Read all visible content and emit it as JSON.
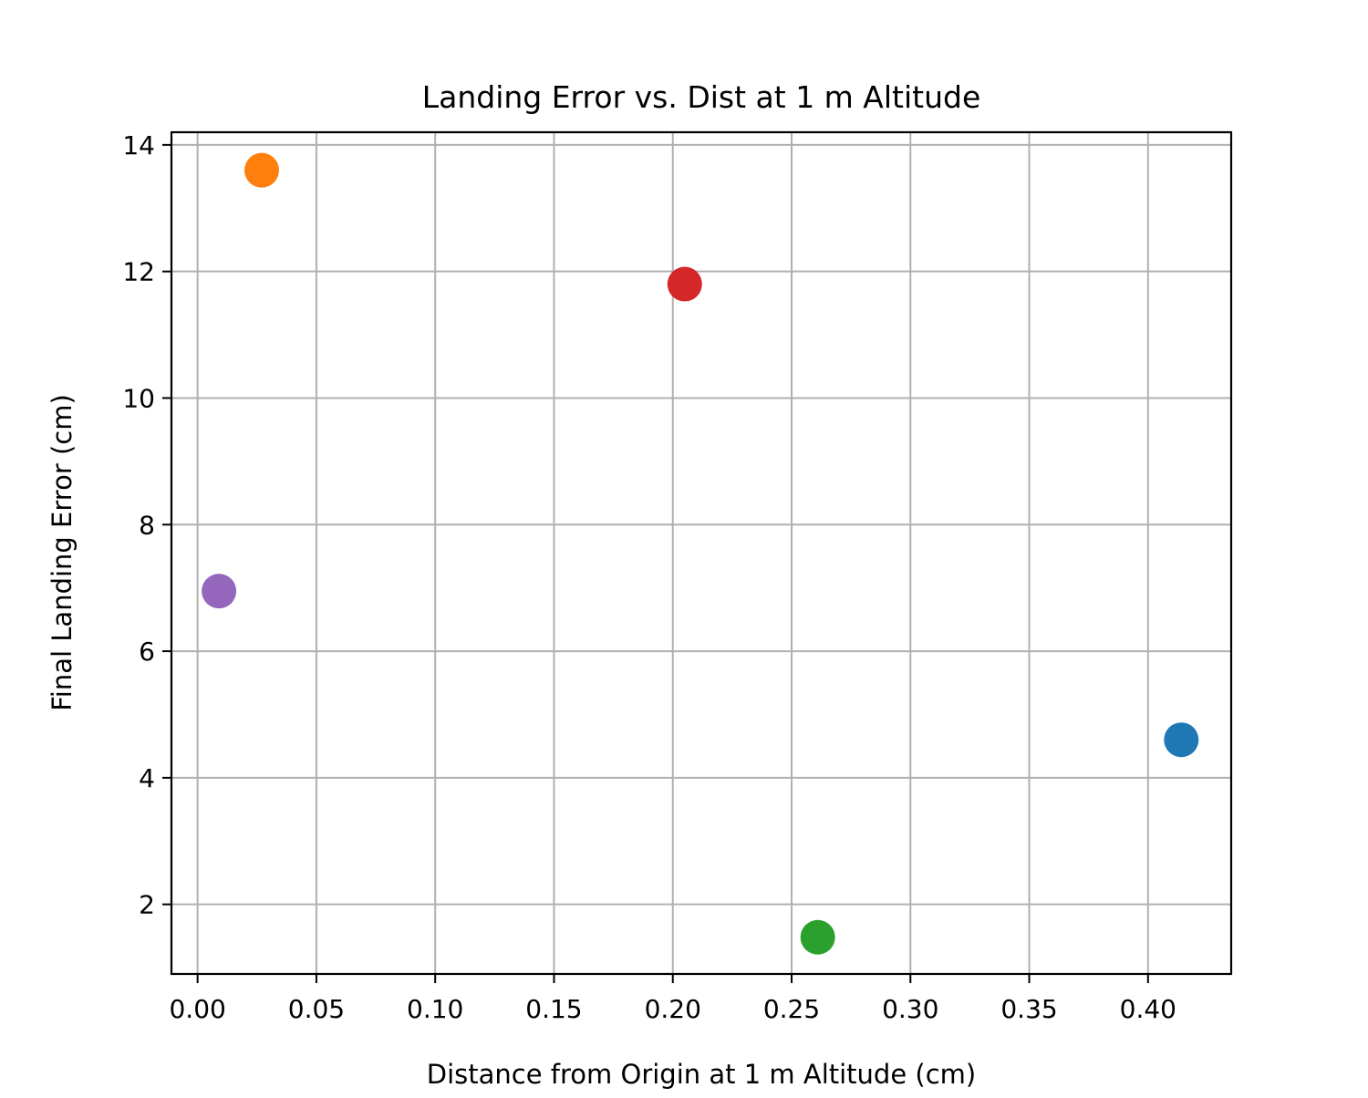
{
  "chart_data": {
    "type": "scatter",
    "title": "Landing Error vs. Dist at 1 m Altitude",
    "xlabel": "Distance from Origin at 1 m Altitude (cm)",
    "ylabel": "Final Landing Error (cm)",
    "xlim": [
      -0.011,
      0.435
    ],
    "ylim": [
      0.9,
      14.2
    ],
    "xticks": [
      "0.00",
      "0.05",
      "0.10",
      "0.15",
      "0.20",
      "0.25",
      "0.30",
      "0.35",
      "0.40"
    ],
    "yticks": [
      "2",
      "4",
      "6",
      "8",
      "10",
      "12",
      "14"
    ],
    "grid": true,
    "points": [
      {
        "x": 0.414,
        "y": 4.6,
        "color": "#1f77b4"
      },
      {
        "x": 0.027,
        "y": 13.6,
        "color": "#ff7f0e"
      },
      {
        "x": 0.261,
        "y": 1.48,
        "color": "#2ca02c"
      },
      {
        "x": 0.205,
        "y": 11.8,
        "color": "#d62728"
      },
      {
        "x": 0.009,
        "y": 6.95,
        "color": "#9467bd"
      }
    ]
  }
}
